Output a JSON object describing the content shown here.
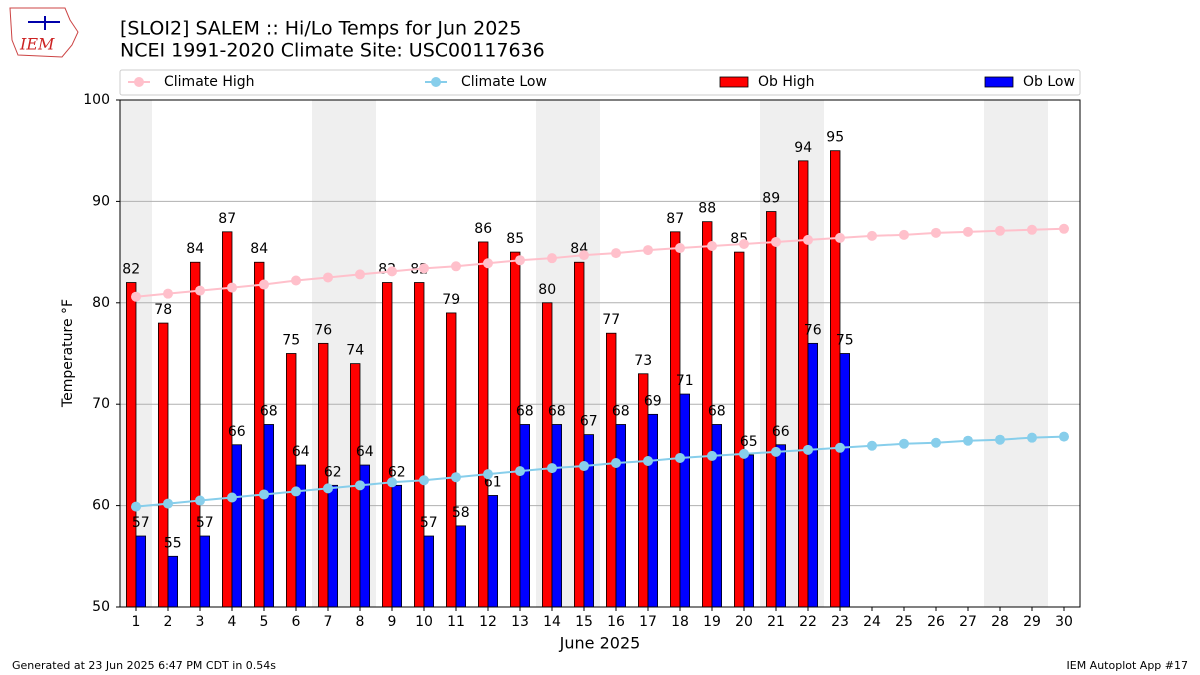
{
  "logo_text": "IEM",
  "footer_left": "Generated at 23 Jun 2025 6:47 PM CDT in 0.54s",
  "footer_right": "IEM Autoplot App #17",
  "chart_data": {
    "type": "bar",
    "title": "[SLOI2] SALEM :: Hi/Lo Temps for Jun 2025",
    "subtitle": "NCEI 1991-2020 Climate Site: USC00117636",
    "x_label": "June 2025",
    "y_label": "Temperature °F",
    "categories": [
      "1",
      "2",
      "3",
      "4",
      "5",
      "6",
      "7",
      "8",
      "9",
      "10",
      "11",
      "12",
      "13",
      "14",
      "15",
      "16",
      "17",
      "18",
      "19",
      "20",
      "21",
      "22",
      "23",
      "24",
      "25",
      "26",
      "27",
      "28",
      "29",
      "30"
    ],
    "shaded": [
      1,
      7,
      8,
      14,
      15,
      21,
      22,
      28,
      29
    ],
    "series": [
      {
        "name": "Climate High",
        "type": "line",
        "color": "#ffc0cb",
        "values": [
          80.6,
          80.9,
          81.2,
          81.5,
          81.8,
          82.2,
          82.5,
          82.8,
          83.1,
          83.4,
          83.6,
          83.9,
          84.2,
          84.4,
          84.7,
          84.9,
          85.2,
          85.4,
          85.6,
          85.8,
          86.0,
          86.2,
          86.4,
          86.6,
          86.7,
          86.9,
          87.0,
          87.1,
          87.2,
          87.3
        ]
      },
      {
        "name": "Climate Low",
        "type": "line",
        "color": "#87ceeb",
        "values": [
          59.9,
          60.2,
          60.5,
          60.8,
          61.1,
          61.4,
          61.7,
          62.0,
          62.3,
          62.5,
          62.8,
          63.1,
          63.4,
          63.7,
          63.9,
          64.2,
          64.4,
          64.7,
          64.9,
          65.1,
          65.3,
          65.5,
          65.7,
          65.9,
          66.1,
          66.2,
          66.4,
          66.5,
          66.7,
          66.8
        ]
      },
      {
        "name": "Ob High",
        "type": "bar",
        "color": "#ff0000",
        "values": [
          82,
          78,
          84,
          87,
          84,
          75,
          76,
          74,
          82,
          82,
          79,
          86,
          85,
          80,
          84,
          77,
          73,
          87,
          88,
          85,
          89,
          94,
          95,
          null,
          null,
          null,
          null,
          null,
          null,
          null
        ]
      },
      {
        "name": "Ob Low",
        "type": "bar",
        "color": "#0000ff",
        "values": [
          57,
          55,
          57,
          66,
          68,
          64,
          62,
          64,
          62,
          57,
          58,
          61,
          68,
          68,
          67,
          68,
          69,
          71,
          68,
          65,
          66,
          76,
          75,
          null,
          null,
          null,
          null,
          null,
          null,
          null
        ]
      }
    ],
    "ylim": [
      50,
      100
    ],
    "yticks": [
      50,
      60,
      70,
      80,
      90,
      100
    ],
    "grid": true,
    "legend": "top"
  }
}
